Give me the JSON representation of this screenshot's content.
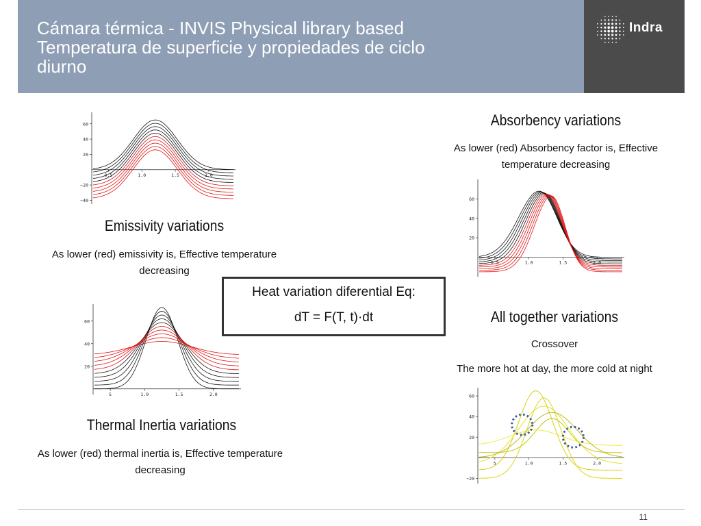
{
  "header": {
    "title_lines": [
      "Cámara térmica - INVIS Physical library based",
      "Temperatura de superficie y propiedades de ciclo",
      "diurno"
    ],
    "logo_text": "Indra"
  },
  "sections": {
    "emissivity": {
      "heading": "Emissivity variations",
      "caption_lines": [
        "As lower (red) emissivity is, Effective temperature",
        "decreasing"
      ]
    },
    "absorbency": {
      "heading": "Absorbency variations",
      "caption_lines": [
        "As lower (red) Absorbency factor is, Effective",
        "temperature decreasing"
      ]
    },
    "inertia": {
      "heading": "Thermal Inertia variations",
      "caption_lines": [
        "As lower (red) thermal inertia is, Effective temperature",
        "decreasing"
      ]
    },
    "together": {
      "heading": "All together variations",
      "caption_lines": [
        "Crossover",
        "The more hot at day, the more cold at night"
      ]
    }
  },
  "equation": {
    "line1": "Heat variation diferential Eq:",
    "line2": "dT = F(T, t)·dt"
  },
  "page_number": "11",
  "colors": {
    "header_bg": "#8e9eb5",
    "logo_bg": "#4b4b4b",
    "red_series": "#e01010",
    "black_series": "#111111",
    "yellow_series": "#e6e01a",
    "crossover_marker": "#3c5a9a"
  },
  "chart_data": [
    {
      "type": "line",
      "panel": "emissivity",
      "x_ticks": [
        "0.5",
        "1.0",
        "1.5",
        "2.0"
      ],
      "y_ticks": [
        "60",
        "40",
        "20",
        "−20",
        "−40"
      ],
      "xlim": [
        0.25,
        2.4
      ],
      "ylim": [
        -45,
        75
      ],
      "series_count": 10,
      "peak_range": [
        26,
        65
      ],
      "baseline_range": [
        -38,
        0
      ],
      "peak_x": 1.2,
      "red_series_index_from": 5
    },
    {
      "type": "line",
      "panel": "absorbency",
      "x_ticks": [
        "0.5",
        "1.0",
        "1.5",
        "2.0"
      ],
      "y_ticks": [
        "60",
        "40",
        "20"
      ],
      "xlim": [
        0.25,
        2.4
      ],
      "ylim": [
        -20,
        80
      ],
      "series_count": 10,
      "peak_range": [
        63,
        68
      ],
      "peak_x_range": [
        1.15,
        1.33
      ],
      "baseline_range": [
        -15,
        0
      ],
      "red_series_index_from": 5
    },
    {
      "type": "line",
      "panel": "inertia",
      "x_ticks": [
        "5",
        "1.0",
        "1.5",
        "2.0"
      ],
      "y_ticks": [
        "60",
        "40",
        "20"
      ],
      "xlim": [
        0.25,
        2.4
      ],
      "ylim": [
        -5,
        75
      ],
      "series_count": 10,
      "peak_range": [
        42,
        72
      ],
      "baseline_range": [
        0,
        30
      ],
      "crossover_points": [
        [
          0.95,
          35
        ],
        [
          1.6,
          35
        ]
      ],
      "red_series_index_from": 5
    },
    {
      "type": "line",
      "panel": "together",
      "x_ticks": [
        "5",
        "1.0",
        "1.5",
        "2.0"
      ],
      "y_ticks": [
        "60",
        "40",
        "20",
        "−20"
      ],
      "xlim": [
        0.25,
        2.4
      ],
      "ylim": [
        -25,
        68
      ],
      "series": [
        {
          "peak": 65,
          "base": -12
        },
        {
          "peak": 50,
          "base": -6
        },
        {
          "peak": 38,
          "base": 5
        },
        {
          "peak": 27,
          "base": 12
        },
        {
          "peak": 58,
          "base": -20
        },
        {
          "peak": 44,
          "base": 0
        }
      ],
      "crossover_markers": [
        [
          0.9,
          32
        ],
        [
          1.65,
          20
        ]
      ]
    }
  ]
}
